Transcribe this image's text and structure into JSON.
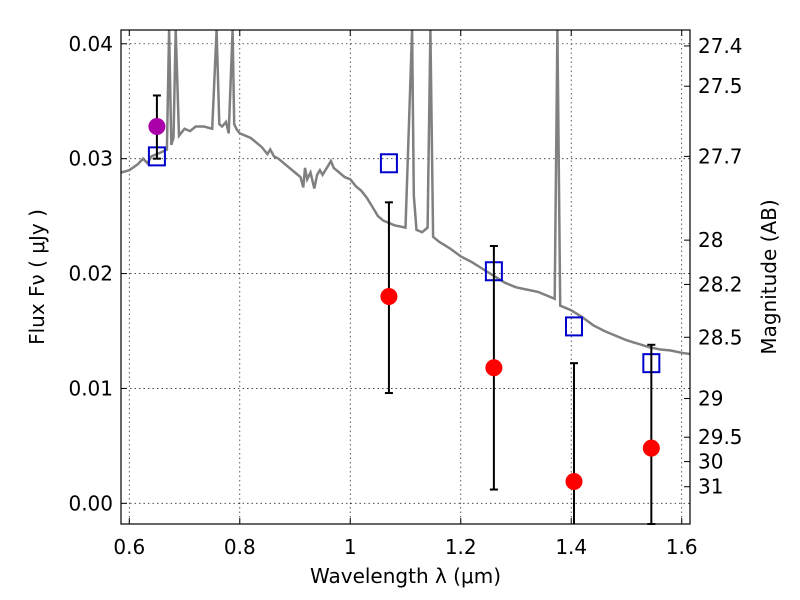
{
  "chart_data": {
    "type": "scatter",
    "xlabel": "Wavelength  λ (μm)",
    "ylabel": "Flux  F_ν  ( μJy )",
    "ylabel_right": "Magnitude (AB)",
    "xlim": [
      0.585,
      1.615
    ],
    "ylim": [
      -0.0018,
      0.0412
    ],
    "x_ticks": [
      0.6,
      0.8,
      1.0,
      1.2,
      1.4,
      1.6
    ],
    "x_tick_labels": [
      "0.6",
      "0.8",
      "1",
      "1.2",
      "1.4",
      "1.6"
    ],
    "y_ticks": [
      0.0,
      0.01,
      0.02,
      0.03,
      0.04
    ],
    "y_tick_labels": [
      "0.00",
      "0.01",
      "0.02",
      "0.03",
      "0.04"
    ],
    "right_ticks": [
      27.4,
      27.5,
      27.7,
      28,
      28.2,
      28.5,
      29,
      29.5,
      30,
      31
    ],
    "right_tick_labels": [
      "27.4",
      "27.5",
      "27.7",
      "28",
      "28.2",
      "28.5",
      "29",
      "29.5",
      "30",
      "31"
    ],
    "grid": true,
    "model_spectrum": {
      "color": "#808080",
      "x": [
        0.585,
        0.6,
        0.615,
        0.625,
        0.633,
        0.64,
        0.65,
        0.66,
        0.668,
        0.672,
        0.676,
        0.68,
        0.684,
        0.69,
        0.7,
        0.71,
        0.72,
        0.735,
        0.75,
        0.758,
        0.763,
        0.768,
        0.775,
        0.78,
        0.787,
        0.79,
        0.795,
        0.8,
        0.82,
        0.84,
        0.85,
        0.855,
        0.862,
        0.87,
        0.88,
        0.89,
        0.9,
        0.91,
        0.915,
        0.918,
        0.922,
        0.928,
        0.935,
        0.94,
        0.945,
        0.95,
        0.955,
        0.96,
        0.965,
        0.97,
        0.98,
        0.99,
        1.0,
        1.01,
        1.02,
        1.03,
        1.04,
        1.05,
        1.06,
        1.08,
        1.1,
        1.112,
        1.115,
        1.12,
        1.13,
        1.14,
        1.145,
        1.15,
        1.16,
        1.18,
        1.2,
        1.22,
        1.24,
        1.26,
        1.28,
        1.3,
        1.32,
        1.34,
        1.36,
        1.37,
        1.375,
        1.38,
        1.4,
        1.42,
        1.44,
        1.46,
        1.48,
        1.5,
        1.52,
        1.54,
        1.56,
        1.58,
        1.6,
        1.615
      ],
      "y": [
        0.0288,
        0.029,
        0.0295,
        0.03,
        0.0296,
        0.0302,
        0.0304,
        0.0306,
        0.0308,
        0.042,
        0.0312,
        0.0318,
        0.042,
        0.032,
        0.0326,
        0.0324,
        0.0328,
        0.0328,
        0.0326,
        0.042,
        0.033,
        0.0328,
        0.0332,
        0.0322,
        0.042,
        0.033,
        0.0325,
        0.0322,
        0.0318,
        0.031,
        0.0304,
        0.0308,
        0.0302,
        0.03,
        0.0296,
        0.0292,
        0.0288,
        0.0284,
        0.0275,
        0.0292,
        0.0282,
        0.0288,
        0.0274,
        0.0286,
        0.029,
        0.0286,
        0.029,
        0.0294,
        0.0298,
        0.0292,
        0.0288,
        0.0284,
        0.0282,
        0.0276,
        0.0272,
        0.0266,
        0.0258,
        0.025,
        0.0246,
        0.0242,
        0.024,
        0.042,
        0.0268,
        0.0238,
        0.0236,
        0.024,
        0.042,
        0.0232,
        0.0228,
        0.0222,
        0.0215,
        0.021,
        0.0204,
        0.0198,
        0.0192,
        0.0188,
        0.0186,
        0.0184,
        0.018,
        0.0178,
        0.042,
        0.0172,
        0.0168,
        0.0162,
        0.0155,
        0.015,
        0.0146,
        0.0142,
        0.0139,
        0.0136,
        0.0134,
        0.0133,
        0.0131,
        0.013
      ]
    },
    "series": [
      {
        "marker": "open-square",
        "color": "#0000cc",
        "x": [
          0.65,
          1.07,
          1.26,
          1.405,
          1.545
        ],
        "y": [
          0.0302,
          0.0296,
          0.0202,
          0.0154,
          0.0122
        ]
      },
      {
        "marker": "filled-circle",
        "color": "#ff0000",
        "x": [
          1.07,
          1.26,
          1.405,
          1.545
        ],
        "y": [
          0.018,
          0.0118,
          0.0019,
          0.0048
        ],
        "yerr_low": [
          0.0084,
          0.0106,
          0.0038,
          0.0066
        ],
        "yerr_high": [
          0.0082,
          0.0106,
          0.0103,
          0.009
        ]
      },
      {
        "marker": "filled-circle",
        "color": "#aa00aa",
        "x": [
          0.65
        ],
        "y": [
          0.0328
        ],
        "yerr_low": [
          0.0028
        ],
        "yerr_high": [
          0.0027
        ]
      }
    ]
  }
}
